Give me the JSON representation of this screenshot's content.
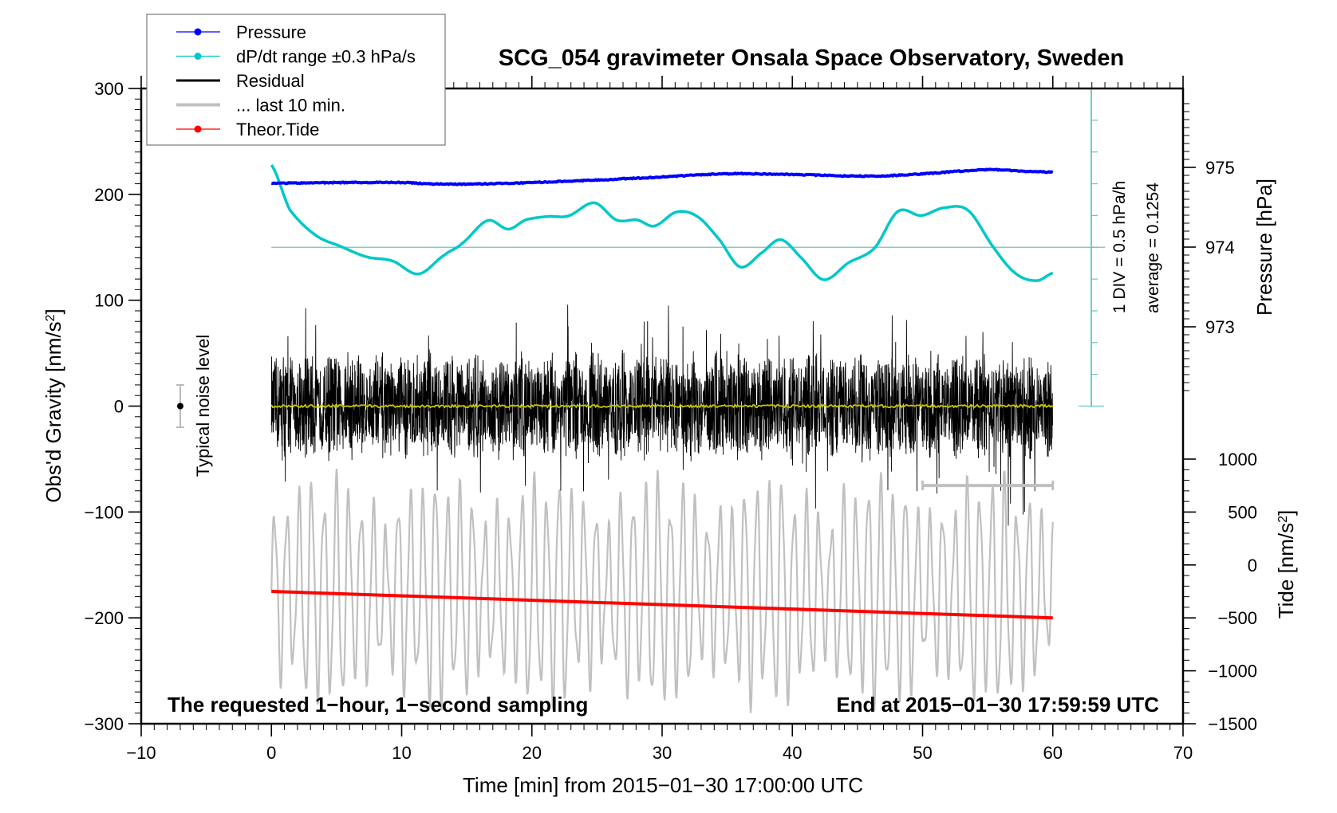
{
  "chart_data": {
    "type": "line",
    "title": "SCG_054 gravimeter Onsala Space Observatory, Sweden",
    "xlabel": "Time [min] from 2015−01−30 17:00:00 UTC",
    "ylabel": "Obs'd Gravity [nm/s",
    "ylabel_sup": "2",
    "ylabel_end": "]",
    "xlim": [
      -10,
      70
    ],
    "ylim": [
      -300,
      300
    ],
    "xticks": [
      -10,
      0,
      10,
      20,
      30,
      40,
      50,
      60,
      70
    ],
    "xtick_labels": [
      "−10",
      "0",
      "10",
      "20",
      "30",
      "40",
      "50",
      "60",
      "70"
    ],
    "yticks": [
      -300,
      -200,
      -100,
      0,
      100,
      200,
      300
    ],
    "ytick_labels": [
      "−300",
      "−200",
      "−100",
      "0",
      "100",
      "200",
      "300"
    ],
    "pressure_axis": {
      "label": "Pressure [hPa]",
      "ticks": [
        973,
        974,
        975
      ],
      "tick_labels": [
        "973",
        "974",
        "975"
      ]
    },
    "tide_axis": {
      "label": "Tide [nm/s",
      "label_sup": "2",
      "label_end": "]",
      "ylim": [
        -1500,
        1000
      ],
      "ticks": [
        -1500,
        -1000,
        -500,
        0,
        500,
        1000
      ],
      "tick_labels": [
        "−1500",
        "−1000",
        "−500",
        "0",
        "500",
        "1000"
      ]
    },
    "dpdt_scale": {
      "div_label": "1 DIV = 0.5 hPa/h",
      "average_label": "average = 0.1254",
      "divisions": 10
    },
    "legend": {
      "placement": "top-left",
      "entries": [
        {
          "label": "Pressure",
          "color": "#0000ff",
          "style": "line-dot"
        },
        {
          "label": "dP/dt range ±0.3 hPa/s",
          "color": "#00c8c8",
          "style": "line-dot"
        },
        {
          "label": "Residual",
          "color": "#000000",
          "style": "line"
        },
        {
          "label": "... last 10 min.",
          "color": "#c0c0c0",
          "style": "thick-line"
        },
        {
          "label": "Theor.Tide",
          "color": "#ff0000",
          "style": "line-dot"
        }
      ]
    },
    "annotations": {
      "left": "The requested 1−hour, 1−second sampling",
      "right": "End at 2015−01−30 17:59:59 UTC",
      "noise": "Typical noise level"
    },
    "noise_bar": {
      "x": -7,
      "center": 0,
      "half_range": 20
    },
    "last10_bar": {
      "x_range": [
        50,
        60
      ],
      "y": -75
    },
    "series": {
      "pressure_hPa": {
        "color": "#0000ff",
        "x": [
          0,
          5,
          10,
          13,
          18,
          25,
          30,
          35,
          40,
          46,
          50,
          55,
          58,
          60
        ],
        "y": [
          974.8,
          974.81,
          974.81,
          974.79,
          974.8,
          974.84,
          974.88,
          974.92,
          974.91,
          974.89,
          974.92,
          974.97,
          974.95,
          974.94
        ]
      },
      "dpdt_div_from_average": {
        "color": "#00c8c8",
        "x": [
          0,
          1.4,
          3.4,
          5.3,
          7.3,
          9.3,
          11.3,
          13.3,
          14.6,
          16.6,
          18.2,
          19.5,
          21.2,
          22.8,
          24.8,
          26.5,
          28.1,
          29.4,
          31.1,
          32.7,
          34.4,
          36.0,
          37.7,
          39.1,
          40.6,
          42.4,
          44.3,
          46.3,
          48.1,
          49.9,
          51.6,
          53.5,
          55.5,
          57.2,
          58.8,
          60
        ],
        "y": [
          2.59,
          1.19,
          0.38,
          0.03,
          -0.3,
          -0.43,
          -0.84,
          -0.24,
          0.11,
          0.84,
          0.57,
          0.86,
          0.97,
          0.99,
          1.4,
          0.86,
          0.86,
          0.67,
          1.11,
          0.97,
          0.24,
          -0.62,
          -0.16,
          0.24,
          -0.3,
          -1.02,
          -0.49,
          -0.03,
          1.13,
          1.0,
          1.24,
          1.16,
          -0.03,
          -0.84,
          -1.05,
          -0.81
        ]
      },
      "theor_tide_nm_s2": {
        "color": "#ff0000",
        "x": [
          0,
          60
        ],
        "y": [
          -250,
          -500
        ]
      },
      "residual": {
        "color": "#000000",
        "sampling_s": 1,
        "mean": 0,
        "max": 137,
        "min": -135
      },
      "residual_smoothed": {
        "color": "#c8c800",
        "value": 0
      },
      "last_10_min": {
        "color": "#c0c0c0",
        "center": -175,
        "max": -97,
        "min": -300
      }
    }
  }
}
